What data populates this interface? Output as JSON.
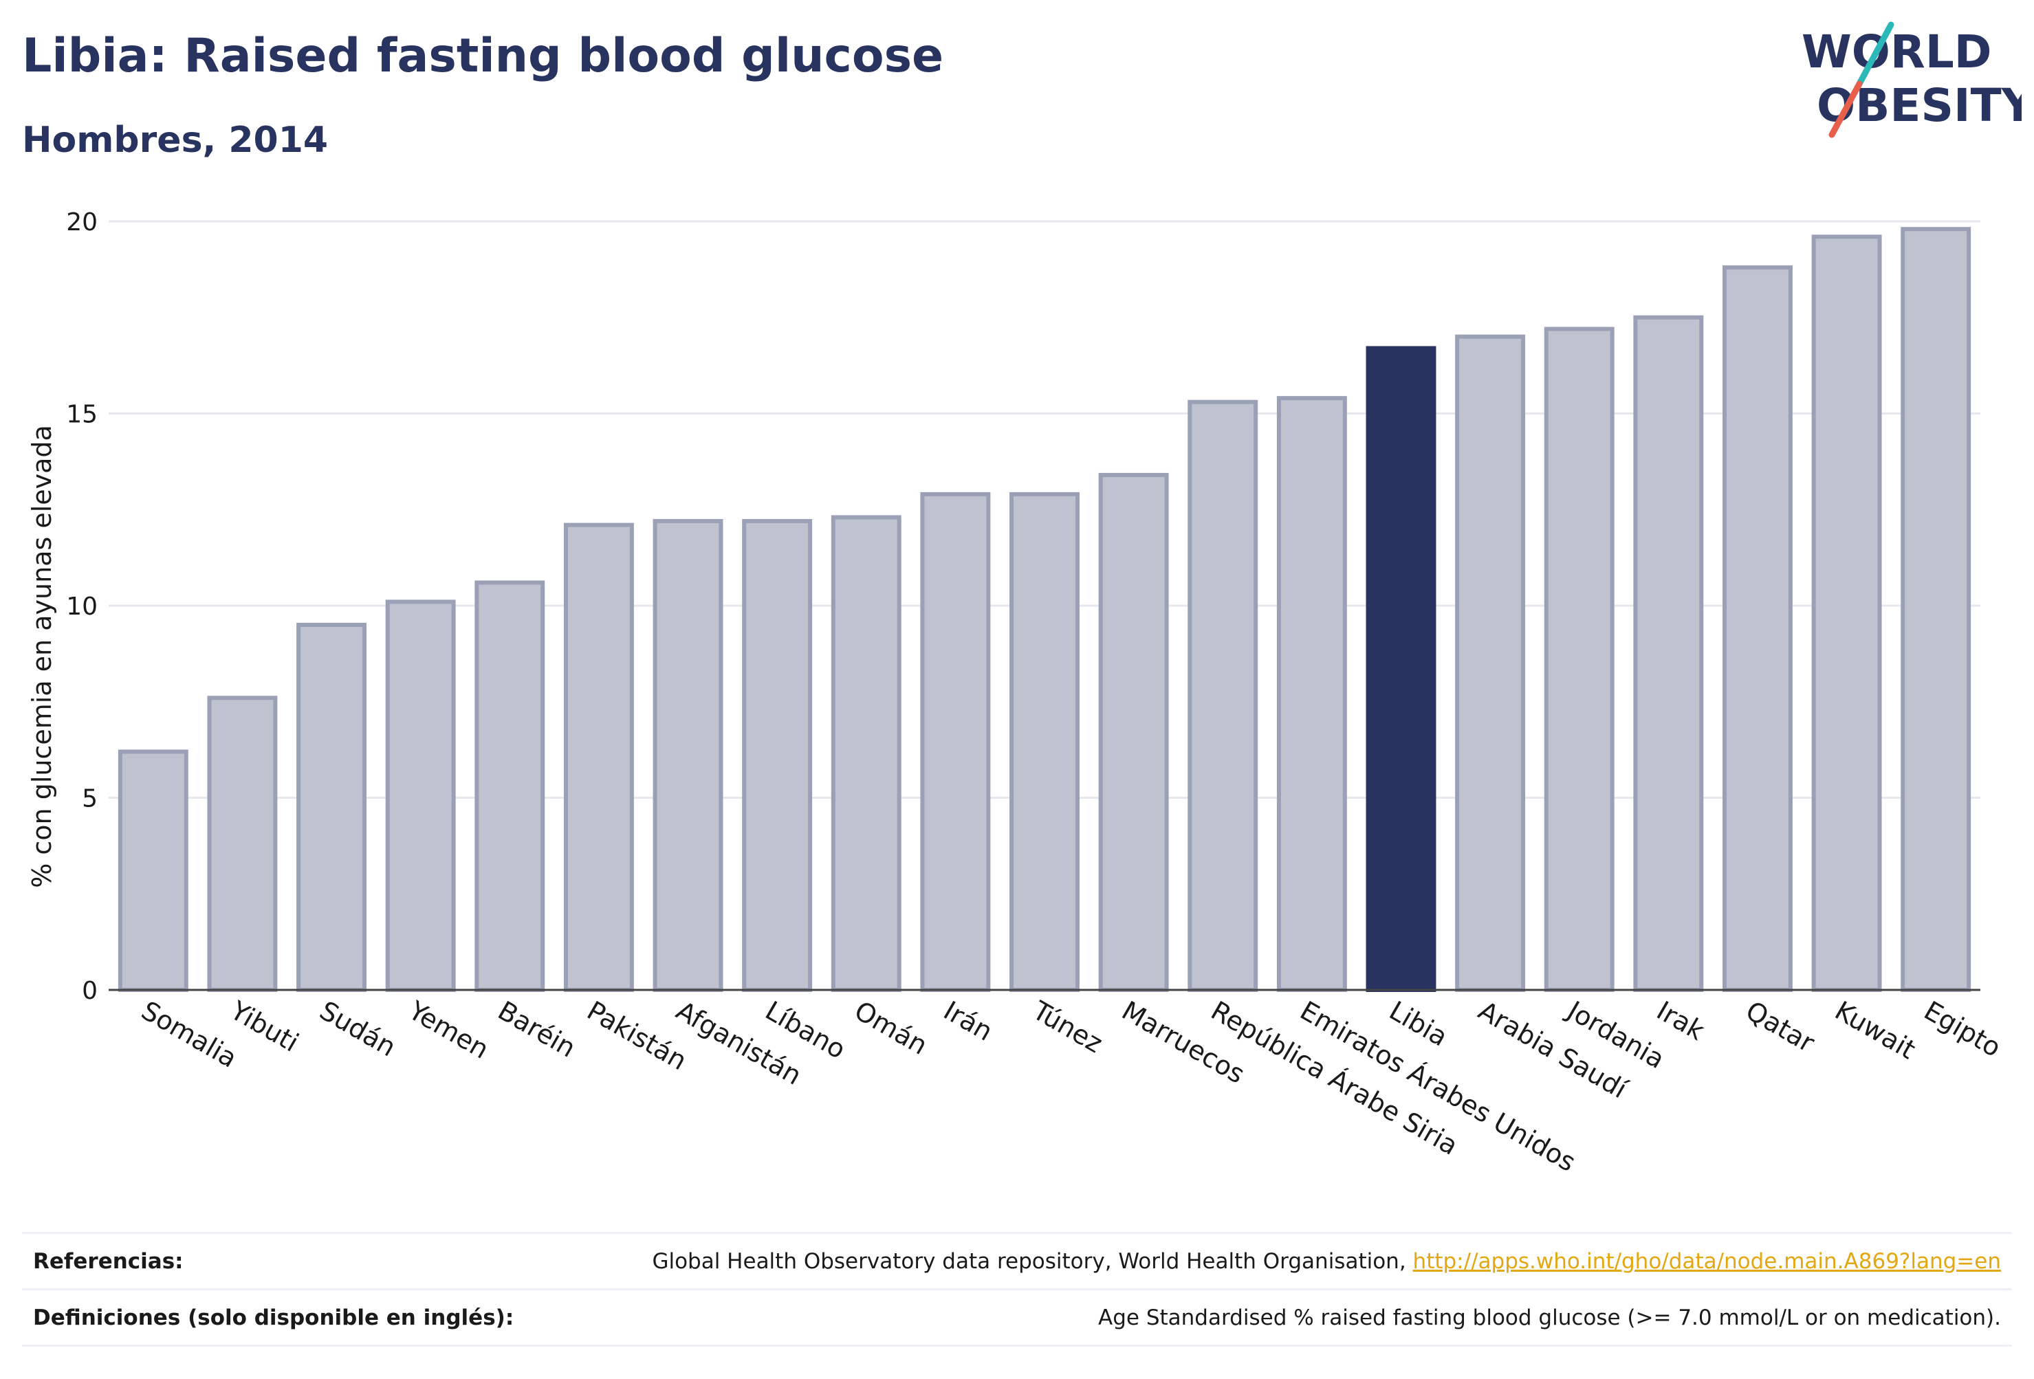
{
  "header": {
    "title": "Libia: Raised fasting blood glucose",
    "subtitle": "Hombres, 2014"
  },
  "logo": {
    "line1": "WORLD",
    "line2": "OBESITY",
    "colors": {
      "text": "#283360",
      "slash_top": "#2bb8b8",
      "slash_bottom": "#e8604c"
    }
  },
  "chart_data": {
    "type": "bar",
    "title": "",
    "xlabel": "",
    "ylabel": "% con glucemia en ayunas elevada",
    "ylim": [
      0,
      20
    ],
    "yticks": [
      0,
      5,
      10,
      15,
      20
    ],
    "grid": true,
    "highlight": "Libia",
    "colors": {
      "bar": "#bfc2cf",
      "bar_edge": "#9aa0b6",
      "highlight": "#283360",
      "grid": "#e6e8ee"
    },
    "categories": [
      "Somalia",
      "Yibuti",
      "Sudán",
      "Yemen",
      "Baréin",
      "Pakistán",
      "Afganistán",
      "Líbano",
      "Omán",
      "Irán",
      "Túnez",
      "Marruecos",
      "República Árabe Siria",
      "Emiratos Árabes Unidos",
      "Libia",
      "Arabia Saudí",
      "Jordania",
      "Irak",
      "Qatar",
      "Kuwait",
      "Egipto"
    ],
    "values": [
      6.2,
      7.6,
      9.5,
      10.1,
      10.6,
      12.1,
      12.2,
      12.2,
      12.3,
      12.9,
      12.9,
      13.4,
      15.3,
      15.4,
      16.7,
      17.0,
      17.2,
      17.5,
      18.8,
      19.6,
      19.8
    ]
  },
  "footer": {
    "references_label": "Referencias:",
    "references_text": "Global Health Observatory data repository, World Health Organisation, ",
    "references_link": "http://apps.who.int/gho/data/node.main.A869?lang=en",
    "definitions_label": "Definiciones (solo disponible en inglés):",
    "definitions_text": "Age Standardised % raised fasting blood glucose (>= 7.0 mmol/L or on medication)."
  }
}
